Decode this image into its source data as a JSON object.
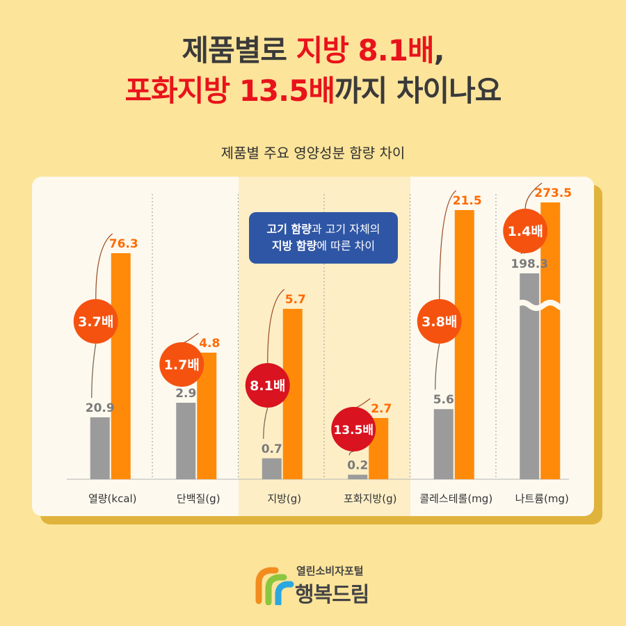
{
  "headline": {
    "line1_a": "제품별로 ",
    "line1_b": "지방 8.1배",
    "line1_c": ",",
    "line2_a": "포화지방 13.5배",
    "line2_b": "까지 차이나요"
  },
  "callout": {
    "line1_bold": "고기 함량",
    "line1_rest": "과 고기 자체의",
    "line2_bold": "지방 함량",
    "line2_rest": "에 따른 차이"
  },
  "footer": {
    "portal_name": "열린소비자포털",
    "brand": "행복드림"
  },
  "colors": {
    "background": "#fce49a",
    "gray_bar": "#9b9b9b",
    "orange_bar": "#ff8a0a",
    "ratio_badge_orange": "#f5520f",
    "ratio_badge_red": "#d9131f",
    "highlight_column": "#fdeec6",
    "callout_box": "#2f56a5"
  },
  "chart_data": {
    "type": "bar",
    "title": "제품별 주요 영양성분 함량 차이",
    "categories": [
      "열량(kcal)",
      "단백질(g)",
      "지방(g)",
      "포화지방(g)",
      "콜레스테롤(mg)",
      "나트륨(mg)"
    ],
    "series": [
      {
        "values": [
          20.9,
          2.9,
          0.7,
          0.2,
          5.6,
          198.3
        ],
        "labels": [
          "20.9",
          "2.9",
          "0.7",
          "0.2",
          "5.6",
          "198.3"
        ],
        "color": "#9b9b9b"
      },
      {
        "values": [
          76.3,
          4.8,
          5.7,
          2.7,
          21.5,
          273.5
        ],
        "labels": [
          "76.3",
          "4.8",
          "5.7",
          "2.7",
          "21.5",
          "273.5"
        ],
        "color": "#ff8a0a"
      }
    ],
    "ratios": [
      "3.7배",
      "1.7배",
      "8.1배",
      "13.5배",
      "3.8배",
      "1.4배"
    ],
    "ratio_colors": [
      "#f5520f",
      "#f5520f",
      "#d9131f",
      "#d9131f",
      "#f5520f",
      "#f5520f"
    ],
    "highlighted_categories": [
      "지방(g)",
      "포화지방(g)"
    ],
    "axis_break_category": "나트륨(mg)",
    "independent_scale_per_category": true,
    "grid": false,
    "legend": "none"
  }
}
